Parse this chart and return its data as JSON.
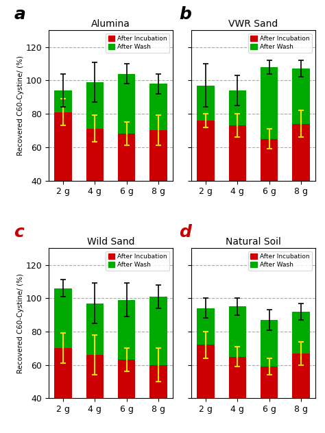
{
  "subplots": [
    {
      "title": "Alumina",
      "label": "a",
      "categories": [
        "2 g",
        "4 g",
        "6 g",
        "8 g"
      ],
      "red_values": [
        81,
        71,
        68,
        70
      ],
      "green_tops": [
        94,
        99,
        104,
        98
      ],
      "red_err": [
        8,
        8,
        7,
        9
      ],
      "green_err": [
        10,
        12,
        6,
        6
      ]
    },
    {
      "title": "VWR Sand",
      "label": "b",
      "categories": [
        "2 g",
        "4 g",
        "6 g",
        "8 g"
      ],
      "red_values": [
        76,
        73,
        65,
        74
      ],
      "green_tops": [
        97,
        94,
        108,
        107
      ],
      "red_err": [
        4,
        7,
        6,
        8
      ],
      "green_err": [
        13,
        9,
        4,
        5
      ]
    },
    {
      "title": "Wild Sand",
      "label": "c",
      "categories": [
        "2 g",
        "4 g",
        "6 g",
        "8 g"
      ],
      "red_values": [
        70,
        66,
        63,
        60
      ],
      "green_tops": [
        106,
        97,
        99,
        101
      ],
      "red_err": [
        9,
        12,
        7,
        10
      ],
      "green_err": [
        5,
        12,
        10,
        7
      ]
    },
    {
      "title": "Natural Soil",
      "label": "d",
      "categories": [
        "2 g",
        "4 g",
        "6 g",
        "8 g"
      ],
      "red_values": [
        72,
        65,
        59,
        67
      ],
      "green_tops": [
        94,
        95,
        87,
        92
      ],
      "red_err": [
        8,
        6,
        5,
        7
      ],
      "green_err": [
        6,
        5,
        6,
        5
      ]
    }
  ],
  "ylim": [
    40,
    130
  ],
  "yticks": [
    40,
    60,
    80,
    100,
    120
  ],
  "ylabel": "Recovered C60-Cystine/ (%)",
  "red_color": "#cc0000",
  "green_color": "#00aa00",
  "error_color": "#ffdd00",
  "grid_color": "#aaaaaa",
  "legend_labels": [
    "After Incubation",
    "After Wash"
  ],
  "bar_width": 0.55,
  "label_colors": {
    "a": "black",
    "b": "black",
    "c": "#cc0000",
    "d": "#cc0000"
  }
}
